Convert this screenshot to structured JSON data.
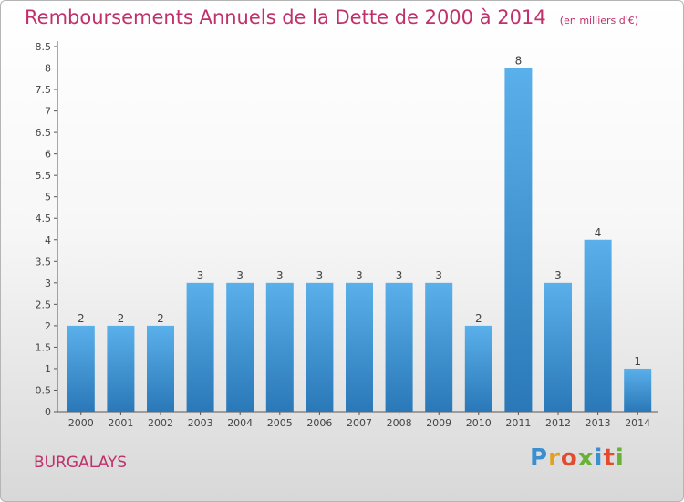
{
  "header": {
    "title": "Remboursements Annuels de la Dette de 2000 à 2014",
    "unit": "(en milliers d'€)"
  },
  "footer": {
    "commune": "BURGALAYS",
    "logo_text": "Proxiti"
  },
  "colors": {
    "title": "#c0306a",
    "bar_top": "#5ab0ea",
    "bar_bottom": "#2a78b8",
    "axis": "#555555",
    "logo_letters": [
      "#3a8fd0",
      "#e0a020",
      "#e34a2e",
      "#68b236",
      "#3a8fd0",
      "#e34a2e",
      "#68b236"
    ]
  },
  "chart_data": {
    "type": "bar",
    "title": "Remboursements Annuels de la Dette de 2000 à 2014",
    "xlabel": "",
    "ylabel": "",
    "categories": [
      "2000",
      "2001",
      "2002",
      "2003",
      "2004",
      "2005",
      "2006",
      "2007",
      "2008",
      "2009",
      "2010",
      "2011",
      "2012",
      "2013",
      "2014"
    ],
    "values": [
      2,
      2,
      2,
      3,
      3,
      3,
      3,
      3,
      3,
      3,
      2,
      8,
      3,
      4,
      1
    ],
    "data_labels": [
      "2",
      "2",
      "2",
      "3",
      "3",
      "3",
      "3",
      "3",
      "3",
      "3",
      "2",
      "8",
      "3",
      "4",
      "1"
    ],
    "ylim": [
      0,
      8.5
    ],
    "yticks": [
      0,
      0.5,
      1,
      1.5,
      2,
      2.5,
      3,
      3.5,
      4,
      4.5,
      5,
      5.5,
      6,
      6.5,
      7,
      7.5,
      8,
      8.5
    ],
    "ytick_labels": [
      "0",
      "0.5",
      "1",
      "1.5",
      "2",
      "2.5",
      "3",
      "3.5",
      "4",
      "4.5",
      "5",
      "5.5",
      "6",
      "6.5",
      "7",
      "7.5",
      "8",
      "8.5"
    ],
    "grid": false,
    "legend": "none"
  }
}
